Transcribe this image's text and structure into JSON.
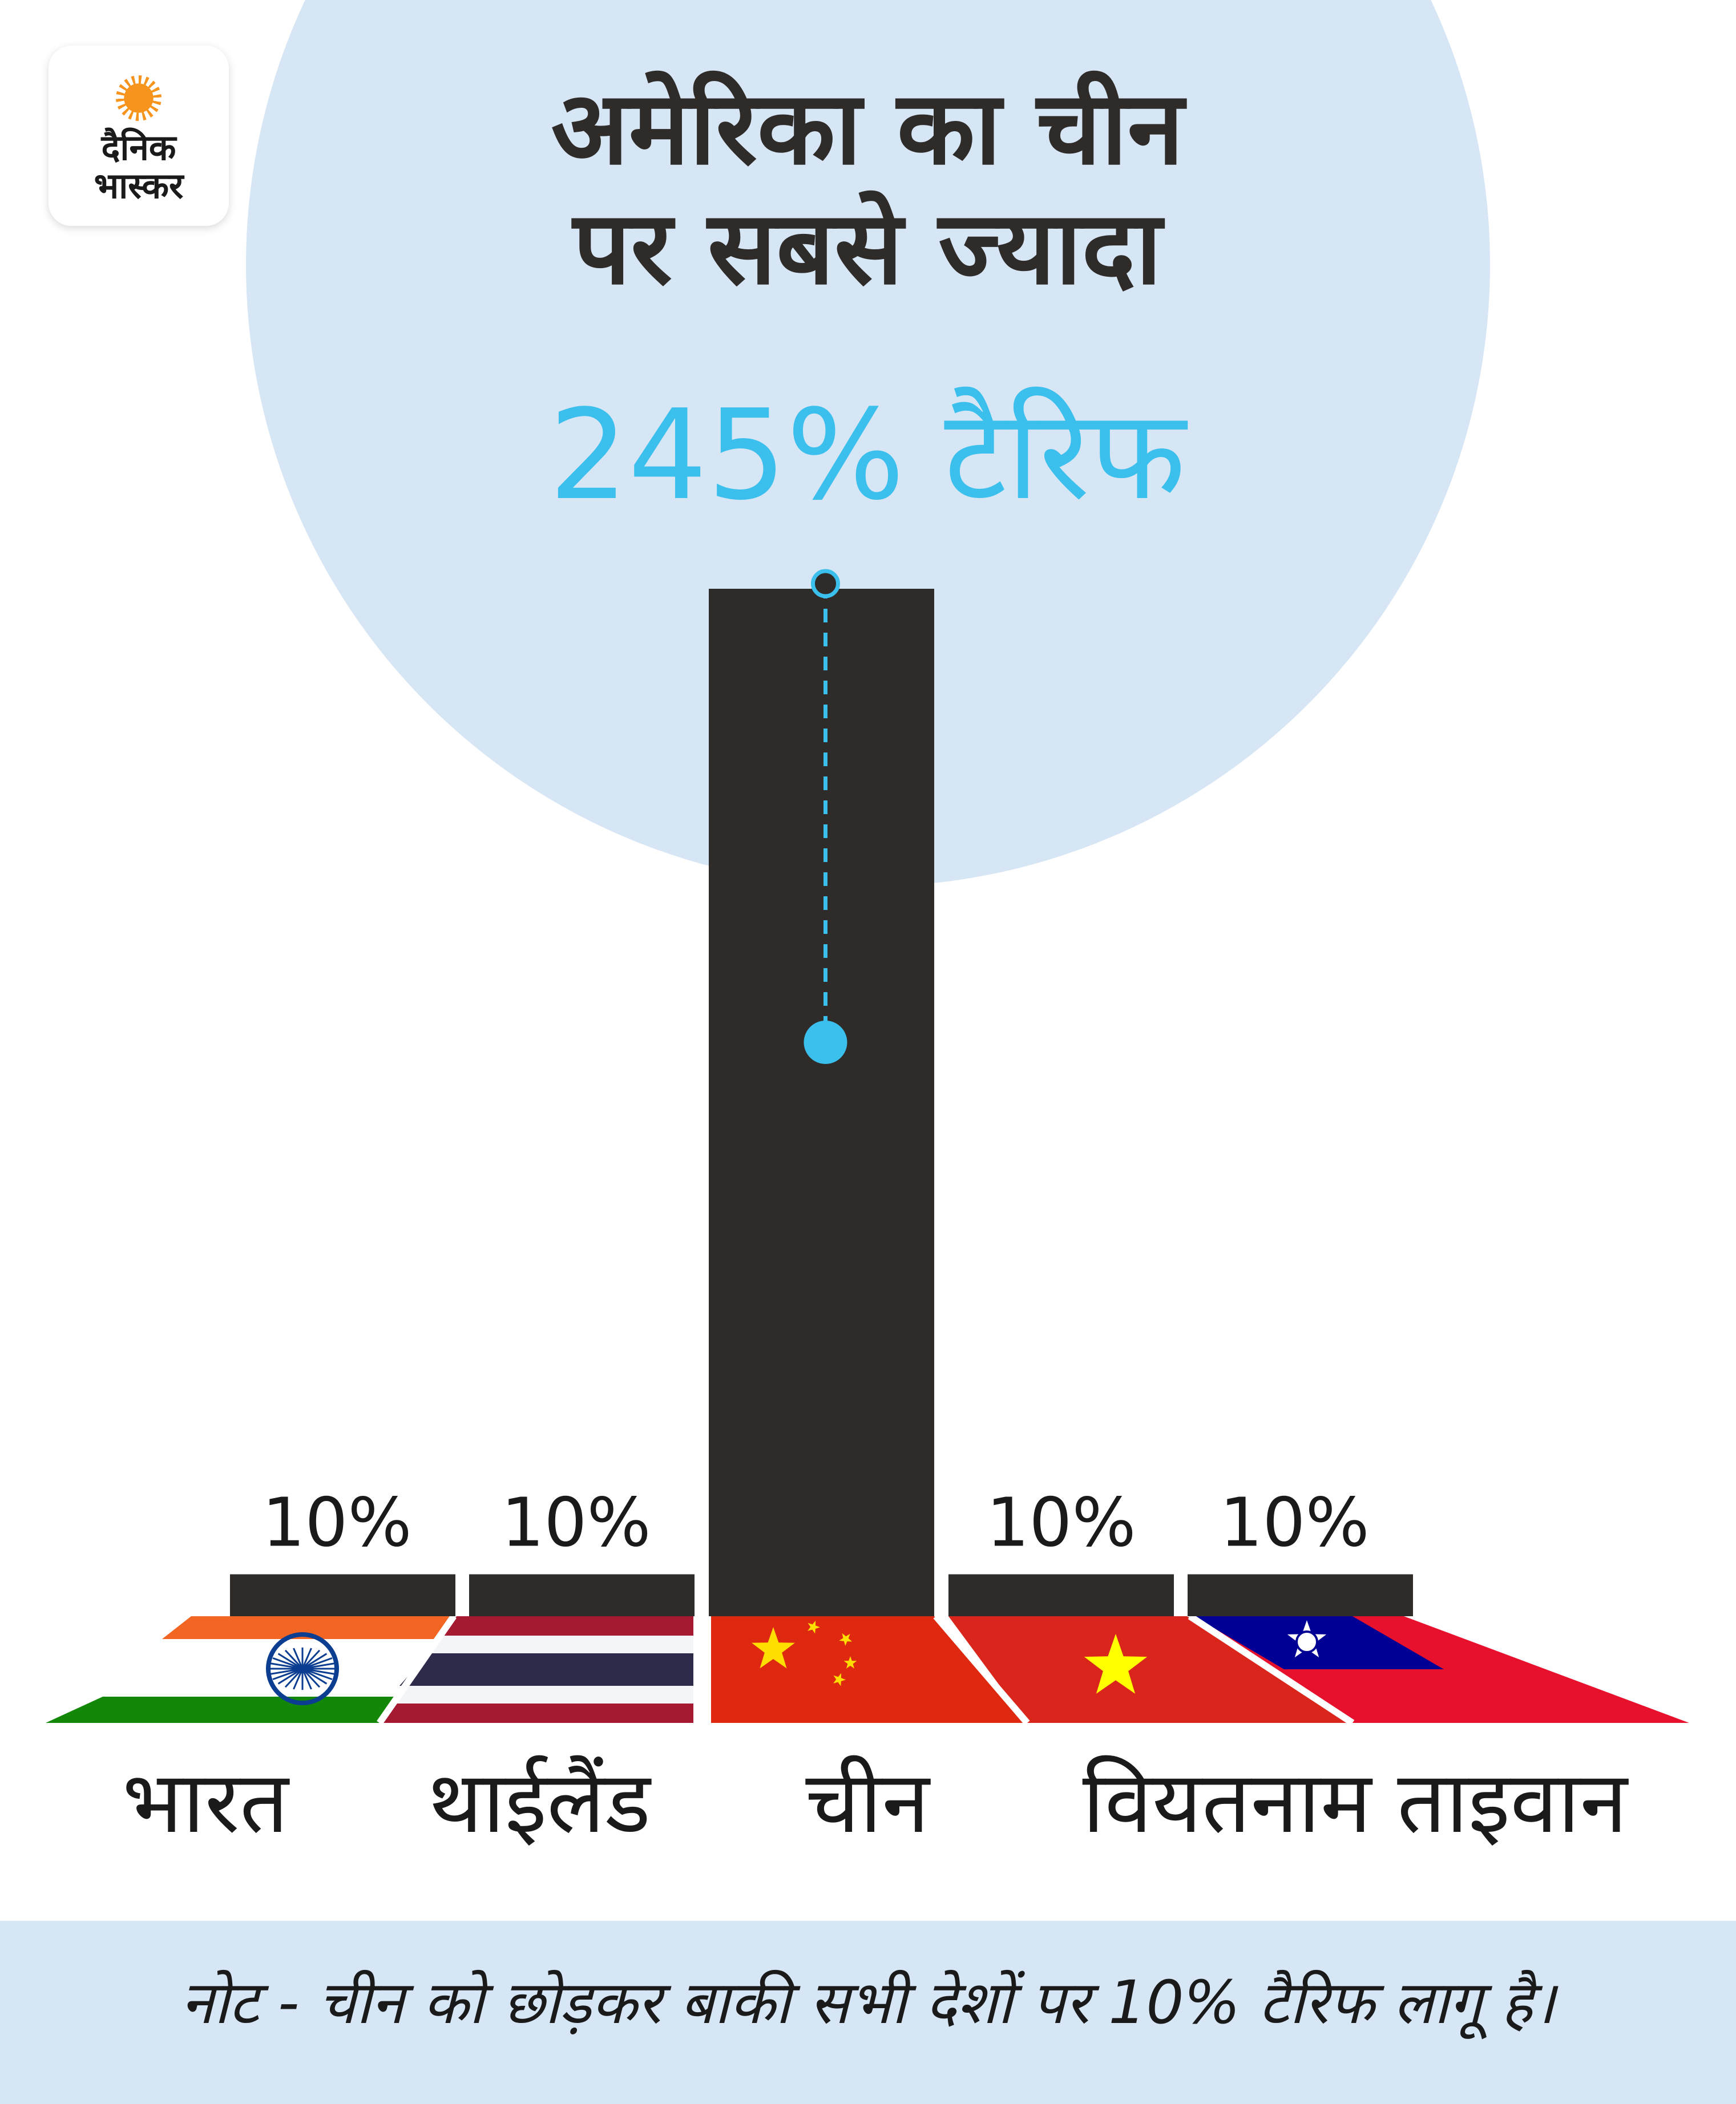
{
  "brand": {
    "line1": "दैनिक",
    "line2": "भास्कर"
  },
  "title": {
    "line1": "अमेरिका का चीन",
    "line2": "पर सबसे ज्यादा",
    "highlight": "245% टैरिफ"
  },
  "colors": {
    "bar": "#2e2b29",
    "highlight": "#3bbfec",
    "background_circle": "#d6e6f5",
    "note_band": "#d6e6f5"
  },
  "chart_data": {
    "type": "bar",
    "categories": [
      "भारत",
      "थाईलैंड",
      "चीन",
      "वियतनाम",
      "ताइवान"
    ],
    "values": [
      10,
      10,
      245,
      10,
      10
    ],
    "value_labels": [
      "10%",
      "10%",
      "",
      "10%",
      "10%"
    ],
    "unit": "%",
    "flags": [
      "india-flag",
      "thailand-flag",
      "china-flag",
      "vietnam-flag",
      "taiwan-flag"
    ],
    "highlighted_category": "चीन"
  },
  "note": "नोट - चीन को छोड़कर बाकी सभी देशों पर 10% टैरिफ लागू है।"
}
